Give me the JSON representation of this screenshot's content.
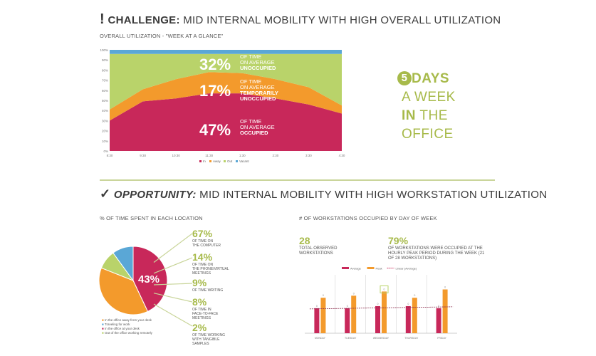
{
  "challenge": {
    "mark": "!",
    "bold": "CHALLENGE:",
    "rest": " MID INTERNAL MOBILITY WITH HIGH OVERALL UTILIZATION",
    "subtitle": "OVERALL UTILIZATION - \"WEEK AT A GLANCE\""
  },
  "area_labels": {
    "unoccupied": {
      "pct": "32%",
      "l1": "OF TIME",
      "l2": "ON AVERAGE",
      "l3": "UNOCCUPIED"
    },
    "temp": {
      "pct": "17%",
      "l1": "OF TIME",
      "l2": "ON AVERAGE",
      "l3": "TEMPORARILY",
      "l4": "UNOCCUPIED"
    },
    "occupied": {
      "pct": "47%",
      "l1": "OF TIME",
      "l2": "ON AVERAGE",
      "l3": "OCCUPIED"
    }
  },
  "days_block": {
    "num": "5",
    "w1": "DAYS",
    "w2": "A WEEK",
    "w3": "IN",
    "w4": " THE",
    "w5": "OFFICE"
  },
  "opportunity": {
    "mark": "✓",
    "bold": "OPPORTUNITY:",
    "rest": " MID INTERNAL MOBILITY WITH HIGH WORKSTATION UTILIZATION"
  },
  "location": {
    "title": "% OF TIME SPENT IN EACH LOCATION",
    "center_label": "43%",
    "callouts": [
      {
        "pct": "67%",
        "l1": "OF TIME ON",
        "l2": "THE COMPUTER",
        "l3": ""
      },
      {
        "pct": "14%",
        "l1": "OF TIME ON",
        "l2": "THE PHONE/VIRTUAL",
        "l3": "MEETINGS"
      },
      {
        "pct": "9%",
        "l1": "OF TIME WRITING",
        "l2": "",
        "l3": ""
      },
      {
        "pct": "8%",
        "l1": "OF TIME IN",
        "l2": "FACE-TO-FACE",
        "l3": "MEETINGS"
      },
      {
        "pct": "2%",
        "l1": "OF TIME WORKING",
        "l2": "WITH TANGIBLE",
        "l3": "SAMPLES"
      }
    ],
    "legend": [
      "In the office away from your desk",
      "Traveling for work",
      "In the office at your desk",
      "Out of the office working remotely"
    ]
  },
  "workstations": {
    "title": "# OF WORKSTATIONS OCCUPIED BY DAY OF WEEK",
    "stat1_num": "28",
    "stat1_l1": "TOTAL OBSERVED",
    "stat1_l2": "WORKSTATIONS",
    "stat2_num": "79%",
    "stat2_l1": "OF WORKSTATIONS WERE OCCUPIED AT THE",
    "stat2_l2": "HOURLY PEAK PERIOD DURING THE WEEK (21",
    "stat2_l3": "OF 28 WORKSTATIONS)"
  },
  "colors": {
    "occupied": "#c8285a",
    "away": "#f39a2c",
    "out": "#b9d36a",
    "vacant": "#5aa7d6",
    "green_text": "#a7ba4a",
    "divider": "#c9d59a"
  },
  "chart_data": [
    {
      "type": "area",
      "title": "OVERALL UTILIZATION - \"WEEK AT A GLANCE\"",
      "x": [
        "8:30",
        "9:30",
        "10:30",
        "11:30",
        "1:30",
        "2:30",
        "3:30",
        "4:30"
      ],
      "ylim": [
        0,
        100
      ],
      "yticks": [
        "0%",
        "10%",
        "20%",
        "30%",
        "40%",
        "50%",
        "60%",
        "70%",
        "80%",
        "90%",
        "100%"
      ],
      "legend": [
        "In",
        "Away",
        "Out",
        "Vacant"
      ],
      "series": [
        {
          "name": "In",
          "values": [
            30,
            49,
            52,
            57,
            57,
            52,
            46,
            37
          ]
        },
        {
          "name": "Away",
          "values": [
            11,
            12,
            19,
            21,
            20,
            19,
            17,
            8
          ]
        },
        {
          "name": "Out",
          "values": [
            55,
            35,
            25,
            18,
            19,
            25,
            33,
            51
          ]
        },
        {
          "name": "Vacant",
          "values": [
            4,
            4,
            4,
            4,
            4,
            4,
            4,
            4
          ]
        }
      ]
    },
    {
      "type": "pie",
      "title": "% OF TIME SPENT IN EACH LOCATION",
      "labels": [
        "In the office at your desk",
        "In the office away from your desk",
        "Out of the office working remotely",
        "Traveling for work"
      ],
      "values": [
        43,
        38,
        9,
        10
      ]
    },
    {
      "type": "bar",
      "title": "# OF WORKSTATIONS OCCUPIED BY DAY OF WEEK",
      "categories": [
        "MONDAY",
        "TUESDAY",
        "WEDNESDAY",
        "THURSDAY",
        "FRIDAY"
      ],
      "legend": [
        "Average",
        "Peak",
        "Linear (Average)"
      ],
      "series": [
        {
          "name": "Average",
          "values": [
            12,
            12,
            13,
            13,
            12
          ]
        },
        {
          "name": "Peak",
          "values": [
            17,
            18,
            20,
            17,
            21
          ]
        }
      ],
      "bar_labels": [
        "0",
        "0",
        "0",
        "0",
        "0"
      ],
      "ylim": [
        0,
        28
      ]
    }
  ]
}
